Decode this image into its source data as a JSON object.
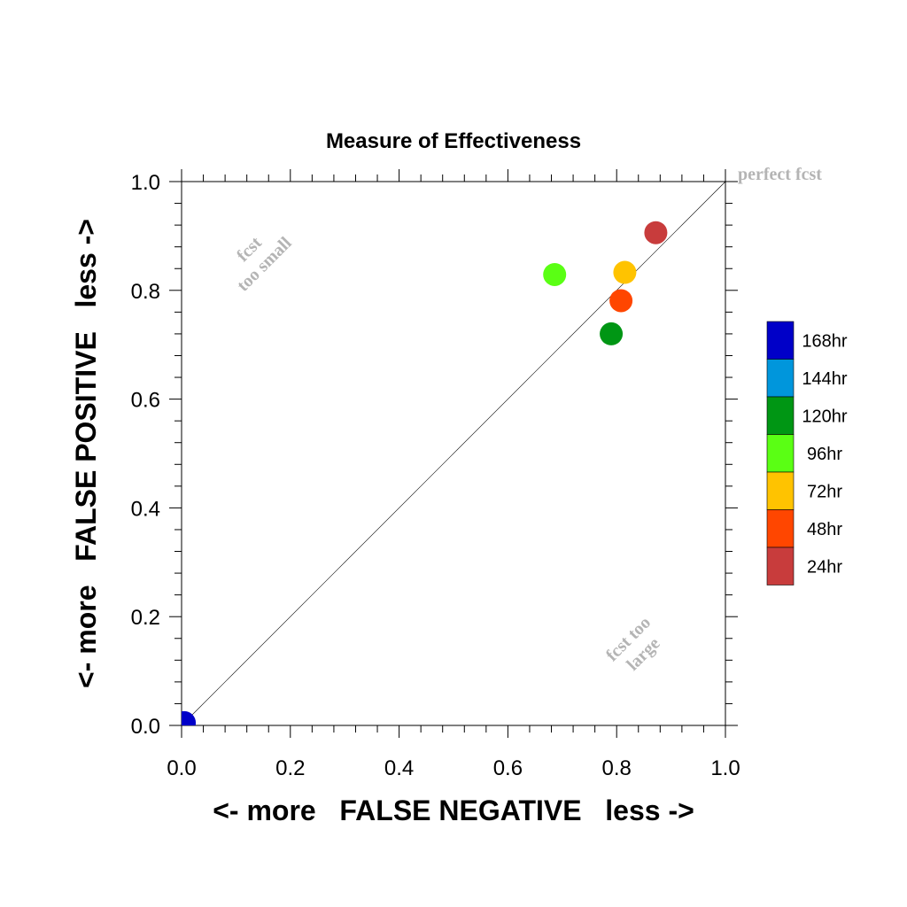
{
  "chart_data": {
    "type": "scatter",
    "title": "Measure of Effectiveness",
    "xlabel": "<- more   FALSE NEGATIVE   less ->",
    "ylabel": "<- more   FALSE POSITIVE   less ->",
    "xlim": [
      0,
      1
    ],
    "ylim": [
      0,
      1
    ],
    "x_ticks": [
      "0.0",
      "0.2",
      "0.4",
      "0.6",
      "0.8",
      "1.0"
    ],
    "y_ticks": [
      "0.0",
      "0.2",
      "0.4",
      "0.6",
      "0.8",
      "1.0"
    ],
    "grid": false,
    "diagonal_line": true,
    "legend_position": "right",
    "series": [
      {
        "name": "168hr",
        "color": "#0000c8",
        "x": 0.005,
        "y": 0.005
      },
      {
        "name": "144hr",
        "color": "#0096dc",
        "x": null,
        "y": null
      },
      {
        "name": "120hr",
        "color": "#009614",
        "x": 0.79,
        "y": 0.72
      },
      {
        "name": "96hr",
        "color": "#5aff14",
        "x": 0.686,
        "y": 0.829
      },
      {
        "name": "72hr",
        "color": "#ffc300",
        "x": 0.815,
        "y": 0.833
      },
      {
        "name": "48hr",
        "color": "#ff4600",
        "x": 0.808,
        "y": 0.781
      },
      {
        "name": "24hr",
        "color": "#c83c3c",
        "x": 0.872,
        "y": 0.906
      }
    ],
    "annotations": {
      "perfect": "perfect fcst",
      "small_line1": "fcst",
      "small_line2": "too small",
      "large_line1": "fcst too",
      "large_line2": "large"
    },
    "annotation_color": "#b4b4b4"
  }
}
